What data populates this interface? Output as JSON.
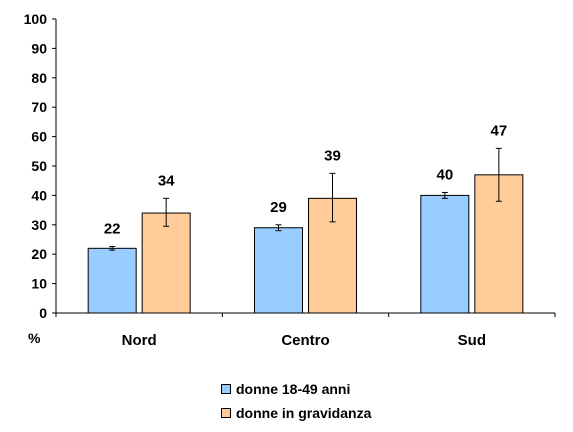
{
  "chart_data": {
    "type": "bar",
    "categories": [
      "Nord",
      "Centro",
      "Sud"
    ],
    "series": [
      {
        "name": "donne 18-49 anni",
        "values": [
          22,
          29,
          40
        ],
        "error_low": [
          21.4,
          28,
          39
        ],
        "error_high": [
          22.6,
          30,
          41
        ],
        "color": "#99ccff"
      },
      {
        "name": "donne in gravidanza",
        "values": [
          34,
          39,
          47
        ],
        "error_low": [
          29.5,
          31,
          38
        ],
        "error_high": [
          39,
          47.5,
          56
        ],
        "color": "#ffcc99"
      }
    ],
    "ylim": [
      0,
      100
    ],
    "yticks": [
      0,
      10,
      20,
      30,
      40,
      50,
      60,
      70,
      80,
      90,
      100
    ],
    "ylabel": "%",
    "xlabel": "",
    "title": "",
    "data_labels": true,
    "legend_position": "bottom",
    "grid": false
  }
}
